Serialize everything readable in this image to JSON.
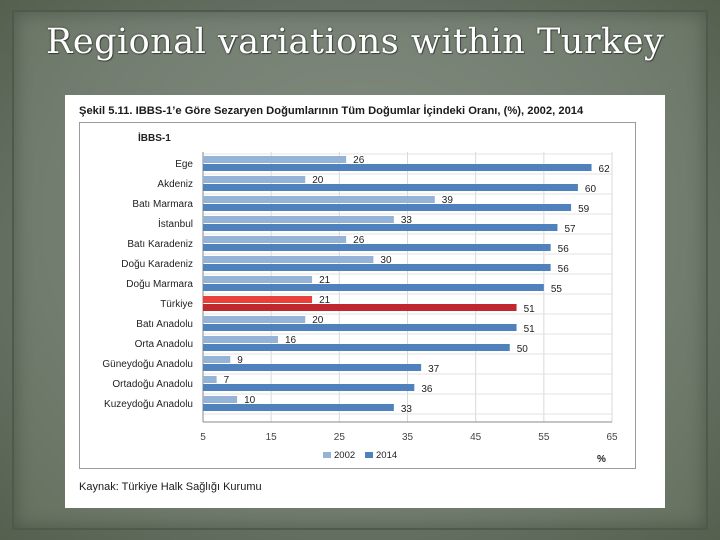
{
  "slide": {
    "title": "Regional variations within Turkey"
  },
  "figure": {
    "caption": "Şekil 5.11. IBBS-1’e Göre Sezaryen Doğumlarının Tüm Doğumlar İçindeki Oranı, (%), 2002, 2014",
    "source": "Kaynak: Türkiye Halk Sağlığı Kurumu"
  },
  "chart_data": {
    "type": "bar",
    "orientation": "horizontal",
    "ylabel": "İBBS-1",
    "xlabel": "%",
    "xlim": [
      5,
      65
    ],
    "xticks": [
      5,
      15,
      25,
      35,
      45,
      55,
      65
    ],
    "grid": true,
    "legend_position": "bottom",
    "categories": [
      "Ege",
      "Akdeniz",
      "Batı Marmara",
      "İstanbul",
      "Batı Karadeniz",
      "Doğu Karadeniz",
      "Doğu Marmara",
      "Türkiye",
      "Batı Anadolu",
      "Orta Anadolu",
      "Güneydoğu Anadolu",
      "Ortadoğu Anadolu",
      "Kuzeydoğu Anadolu"
    ],
    "series": [
      {
        "name": "2002",
        "color": "#95b3d7",
        "values": [
          26,
          20,
          39,
          33,
          26,
          30,
          21,
          21,
          20,
          16,
          9,
          7,
          10
        ]
      },
      {
        "name": "2014",
        "color": "#4f81bd",
        "values": [
          62,
          60,
          59,
          57,
          56,
          56,
          55,
          51,
          51,
          50,
          37,
          36,
          33
        ]
      }
    ],
    "highlight": {
      "category": "Türkiye",
      "color_2002": "#e8403a",
      "color_2014": "#c0282d"
    }
  }
}
